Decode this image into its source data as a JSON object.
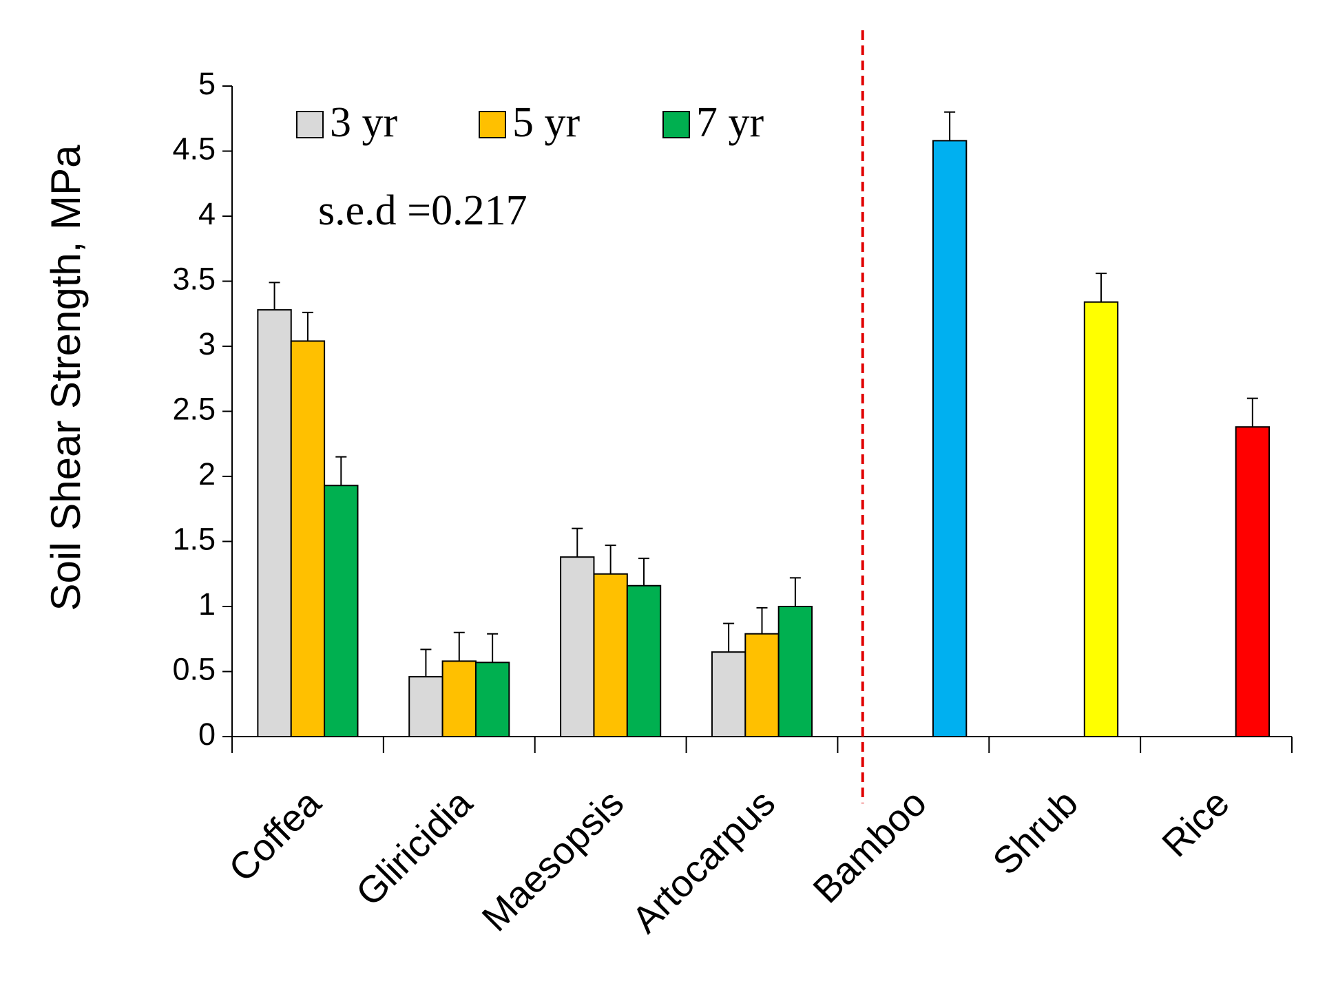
{
  "chart_data": {
    "type": "bar",
    "y_label": "Soil Shear Strength, MPa",
    "annotation": "s.e.d =0.217",
    "categories": [
      "Coffea",
      "Gliricidia",
      "Maesopsis",
      "Artocarpus",
      "Bamboo",
      "Shrub",
      "Rice"
    ],
    "series": [
      {
        "name": "3 yr",
        "color": "#d9d9d9",
        "values": [
          3.28,
          0.46,
          1.38,
          0.65,
          null,
          null,
          null
        ],
        "errors": [
          0.21,
          0.21,
          0.22,
          0.22,
          null,
          null,
          null
        ]
      },
      {
        "name": "5 yr",
        "color": "#ffc000",
        "values": [
          3.04,
          0.58,
          1.25,
          0.79,
          null,
          null,
          null
        ],
        "errors": [
          0.22,
          0.22,
          0.22,
          0.2,
          null,
          null,
          null
        ]
      },
      {
        "name": "7 yr",
        "color": "#00b050",
        "values": [
          1.93,
          0.57,
          1.16,
          1.0,
          null,
          null,
          null
        ],
        "errors": [
          0.22,
          0.22,
          0.21,
          0.22,
          null,
          null,
          null
        ]
      }
    ],
    "extra_bars": {
      "values": [
        null,
        null,
        null,
        null,
        4.58,
        3.34,
        2.38
      ],
      "errors": [
        null,
        null,
        null,
        null,
        0.22,
        0.22,
        0.22
      ],
      "colors": [
        null,
        null,
        null,
        null,
        "#00b0f0",
        "#ffff00",
        "#ff0000"
      ]
    },
    "ylim": [
      0,
      5
    ],
    "yticks": [
      0,
      0.5,
      1,
      1.5,
      2,
      2.5,
      3,
      3.5,
      4,
      4.5,
      5
    ]
  }
}
